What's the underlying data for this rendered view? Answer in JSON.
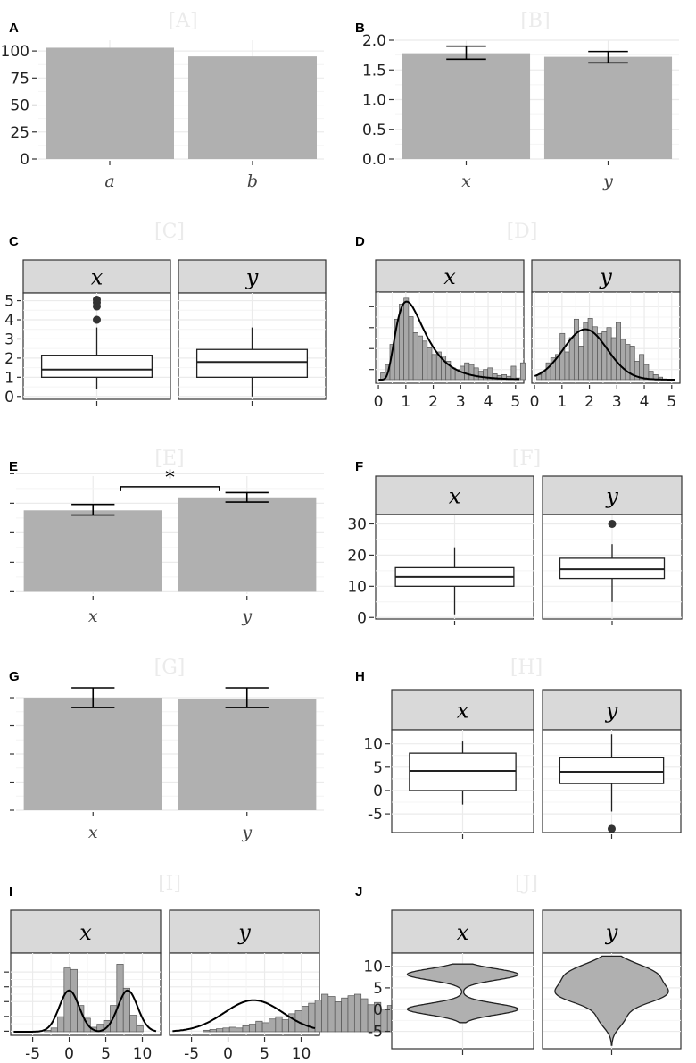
{
  "chart_data": [
    {
      "panel": "A",
      "watermark": "[A]",
      "type": "bar",
      "categories": [
        "a",
        "b"
      ],
      "values": [
        103,
        95
      ],
      "ylim": [
        0,
        110
      ],
      "yticks": [
        "0",
        "25",
        "50",
        "75",
        "100"
      ],
      "ytick_values": [
        0,
        25,
        50,
        75,
        100
      ],
      "grid": true
    },
    {
      "panel": "B",
      "watermark": "[B]",
      "type": "bar",
      "categories": [
        "x",
        "y"
      ],
      "values": [
        1.78,
        1.72
      ],
      "errors": [
        [
          1.68,
          1.9
        ],
        [
          1.62,
          1.81
        ]
      ],
      "ylim": [
        0,
        2.0
      ],
      "yticks": [
        "0.0",
        "0.5",
        "1.0",
        "1.5",
        "2.0"
      ],
      "ytick_values": [
        0,
        0.5,
        1.0,
        1.5,
        2.0
      ],
      "grid": true
    },
    {
      "panel": "C",
      "watermark": "[C]",
      "type": "boxplot",
      "facets": [
        "x",
        "y"
      ],
      "boxes": [
        {
          "min": 0.4,
          "q1": 1.0,
          "median": 1.4,
          "q3": 2.15,
          "max": 3.6,
          "outliers": [
            4.0,
            4.7,
            4.9,
            5.05
          ]
        },
        {
          "min": 0.0,
          "q1": 1.0,
          "median": 1.8,
          "q3": 2.45,
          "max": 3.6,
          "outliers": []
        }
      ],
      "ylim": [
        -0.15,
        5.4
      ],
      "yticks": [
        "0",
        "1",
        "2",
        "3",
        "4",
        "5"
      ],
      "ytick_values": [
        0,
        1,
        2,
        3,
        4,
        5
      ],
      "grid": true
    },
    {
      "panel": "D",
      "watermark": "[D]",
      "type": "histogram",
      "facets": [
        "x",
        "y"
      ],
      "bin_width": 0.17,
      "x_start": 0.08,
      "xlim": [
        -0.1,
        5.3
      ],
      "ylim": [
        0,
        1.0
      ],
      "xticks": [
        "0",
        "1",
        "2",
        "3",
        "4",
        "5"
      ],
      "xtick_values": [
        0,
        1,
        2,
        3,
        4,
        5
      ],
      "ytick_values": [
        0.15,
        0.38,
        0.61,
        0.84
      ],
      "histograms": [
        [
          0.08,
          0.18,
          0.42,
          0.72,
          0.9,
          0.97,
          0.75,
          0.56,
          0.52,
          0.46,
          0.38,
          0.3,
          0.33,
          0.28,
          0.22,
          0.14,
          0.12,
          0.16,
          0.2,
          0.18,
          0.14,
          0.1,
          0.12,
          0.14,
          0.07,
          0.05,
          0.06,
          0.04,
          0.16,
          0.02,
          0.2
        ],
        [
          0.06,
          0.1,
          0.2,
          0.26,
          0.3,
          0.55,
          0.33,
          0.5,
          0.72,
          0.4,
          0.68,
          0.73,
          0.63,
          0.55,
          0.57,
          0.62,
          0.5,
          0.68,
          0.48,
          0.42,
          0.4,
          0.22,
          0.3,
          0.18,
          0.1,
          0.06,
          0.03
        ]
      ],
      "densities": [
        {
          "dist": "lognormal",
          "mu": 0.28,
          "sigma": 0.5,
          "scale": 0.93
        },
        {
          "dist": "normal",
          "mean": 1.85,
          "sd": 0.8,
          "scale": 0.6
        }
      ]
    },
    {
      "panel": "E",
      "watermark": "[E]",
      "type": "bar",
      "categories": [
        "x",
        "y"
      ],
      "values": [
        0.69,
        0.8
      ],
      "errors": [
        [
          0.65,
          0.74
        ],
        [
          0.76,
          0.84
        ]
      ],
      "significance": {
        "label": "*",
        "height": 0.89
      },
      "ylim": [
        -0.02,
        0.98
      ],
      "ytick_values": [
        0,
        0.25,
        0.5,
        0.75,
        1.0
      ],
      "grid": true
    },
    {
      "panel": "F",
      "watermark": "[F]",
      "type": "boxplot",
      "facets": [
        "x",
        "y"
      ],
      "boxes": [
        {
          "min": 1,
          "q1": 10,
          "median": 13,
          "q3": 16,
          "max": 22.5,
          "outliers": []
        },
        {
          "min": 5,
          "q1": 12.5,
          "median": 15.5,
          "q3": 19,
          "max": 23.5,
          "outliers": [
            30
          ]
        }
      ],
      "ylim": [
        -0.5,
        33
      ],
      "yticks": [
        "0",
        "10",
        "20",
        "30"
      ],
      "ytick_values": [
        0,
        10,
        20,
        30
      ],
      "grid": true
    },
    {
      "panel": "G",
      "watermark": "[G]",
      "type": "bar",
      "categories": [
        "x",
        "y"
      ],
      "values": [
        0.8,
        0.79
      ],
      "errors": [
        [
          0.73,
          0.87
        ],
        [
          0.73,
          0.87
        ]
      ],
      "ylim": [
        0,
        0.87
      ],
      "ytick_values": [
        0,
        0.2,
        0.4,
        0.6,
        0.8
      ],
      "grid": true
    },
    {
      "panel": "H",
      "watermark": "[H]",
      "type": "boxplot",
      "facets": [
        "x",
        "y"
      ],
      "boxes": [
        {
          "min": -3,
          "q1": 0,
          "median": 4.2,
          "q3": 8,
          "max": 10.5,
          "outliers": []
        },
        {
          "min": -4.5,
          "q1": 1.5,
          "median": 4,
          "q3": 7,
          "max": 12,
          "outliers": [
            -8.2
          ]
        }
      ],
      "ylim": [
        -9,
        13
      ],
      "yticks": [
        "-5",
        "0",
        "5",
        "10"
      ],
      "ytick_values": [
        -5,
        0,
        5,
        10
      ],
      "grid": true
    },
    {
      "panel": "I",
      "watermark": "[I]",
      "type": "histogram",
      "facets": [
        "x",
        "y"
      ],
      "bin_width": 0.9,
      "x_start": -3.4,
      "xlim": [
        -8,
        12.5
      ],
      "ylim": [
        0,
        1.0
      ],
      "xticks": [
        "-5",
        "0",
        "5",
        "10"
      ],
      "xtick_values": [
        -5,
        0,
        5,
        10
      ],
      "ytick_values": [
        0.05,
        0.23,
        0.41,
        0.59,
        0.77
      ],
      "histograms": [
        [
          0.02,
          0.05,
          0.2,
          0.85,
          0.83,
          0.35,
          0.18,
          0.06,
          0.1,
          0.15,
          0.35,
          0.9,
          0.58,
          0.22,
          0.08
        ],
        [
          0.02,
          0.03,
          0.04,
          0.05,
          0.06,
          0.05,
          0.08,
          0.1,
          0.14,
          0.12,
          0.17,
          0.2,
          0.16,
          0.24,
          0.28,
          0.34,
          0.38,
          0.42,
          0.5,
          0.47,
          0.4,
          0.45,
          0.48,
          0.5,
          0.44,
          0.36,
          0.39,
          0.3,
          0.35,
          0.25,
          0.22,
          0.28,
          0.2,
          0.18,
          0.14,
          0.1
        ]
      ],
      "densities": [
        {
          "dist": "mixture",
          "components": [
            {
              "mean": 0,
              "sd": 1.35
            },
            {
              "mean": 8,
              "sd": 1.35
            }
          ],
          "scale": 0.55
        },
        {
          "dist": "normal",
          "mean": 3.5,
          "sd": 4.0,
          "scale": 0.42
        }
      ]
    },
    {
      "panel": "J",
      "watermark": "[J]",
      "type": "violin",
      "facets": [
        "x",
        "y"
      ],
      "violins": [
        {
          "lo": -3,
          "hi": 10.5,
          "components": [
            {
              "mean": 0.1,
              "sd": 1.3,
              "w": 1
            },
            {
              "mean": 8.1,
              "sd": 1.3,
              "w": 1
            }
          ],
          "width_frac": 0.78
        },
        {
          "lo": -8.2,
          "hi": 12.3,
          "components": [
            {
              "mean": 3.5,
              "sd": 2.2,
              "w": 1
            },
            {
              "mean": 8.2,
              "sd": 2.4,
              "w": 0.85
            },
            {
              "mean": -2,
              "sd": 2.2,
              "w": 0.25
            }
          ],
          "width_frac": 0.82
        }
      ],
      "ylim": [
        -9,
        13
      ],
      "yticks": [
        "-5",
        "0",
        "5",
        "10"
      ],
      "ytick_values": [
        -5,
        0,
        5,
        10
      ],
      "grid": true
    }
  ]
}
